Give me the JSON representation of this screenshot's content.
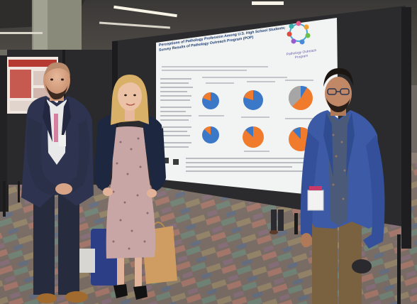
{
  "photo": {
    "poster": {
      "title_line1": "Perceptions of Pathology Profession Among U.S. High School Students;",
      "title_line2": "Survey Results of Pathology Outreach Program (POP)",
      "logo_text_line1": "Pathology Outreach",
      "logo_text_line2": "Program"
    },
    "colors": {
      "poster_bg": "#f2f4f3",
      "pie_blue": "#3b78c8",
      "pie_orange": "#f07b2c",
      "pie_gray": "#a6a6a6",
      "board": "#2b2b2d",
      "carpet": "#7b6e66"
    }
  }
}
